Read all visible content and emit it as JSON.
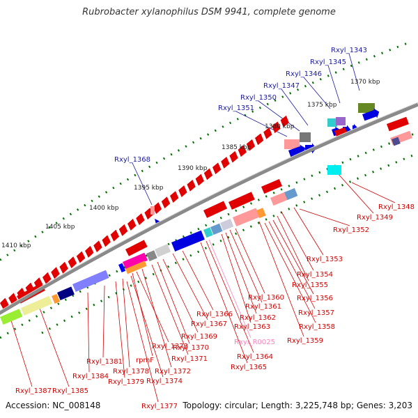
{
  "title": "Rubrobacter xylanophilus DSM 9941, complete genome",
  "accession_text": "Accession: NC_008148",
  "summary_text": "Topology: circular; Length: 3,225,748 bp; Genes: 3,203",
  "colors": {
    "forward_label": "#1a1aa6",
    "reverse_label": "#d40000",
    "rna_label": "#ff80c0",
    "gene_red": "#e00000",
    "gene_blue": "#0000e0",
    "backbone": "#808080",
    "tick": "#007000"
  },
  "kbp_ticks": [
    "1370 kbp",
    "1375 kbp",
    "1380 kbp",
    "1385 kbp",
    "1390 kbp",
    "1395 kbp",
    "1400 kbp",
    "1405 kbp",
    "1410 kbp"
  ],
  "forward_labels": [
    "Rxyl_1343",
    "Rxyl_1345",
    "Rxyl_1346",
    "Rxyl_1347",
    "Rxyl_1350",
    "Rxyl_1351",
    "Rxyl_1368"
  ],
  "reverse_labels": [
    "Rxyl_1348",
    "Rxyl_1349",
    "Rxyl_1352",
    "Rxyl_1353",
    "Rxyl_1354",
    "Rxyl_1355",
    "Rxyl_1356",
    "Rxyl_1357",
    "Rxyl_1358",
    "Rxyl_1359",
    "Rxyl_1360",
    "Rxyl_1361",
    "Rxyl_1362",
    "Rxyl_1363",
    "Rxyl_R0025",
    "Rxyl_1364",
    "Rxyl_1365",
    "Rxyl_1366",
    "Rxyl_1367",
    "Rxyl_1369",
    "Rxyl_1370",
    "Rxyl_1371",
    "Rxyl_1372",
    "Rxyl_1373",
    "rpmF",
    "Rxyl_1374",
    "Rxyl_1378",
    "Rxyl_1379",
    "Rxyl_1377",
    "Rxyl_1381",
    "Rxyl_1384",
    "Rxyl_1385",
    "Rxyl_1387"
  ]
}
